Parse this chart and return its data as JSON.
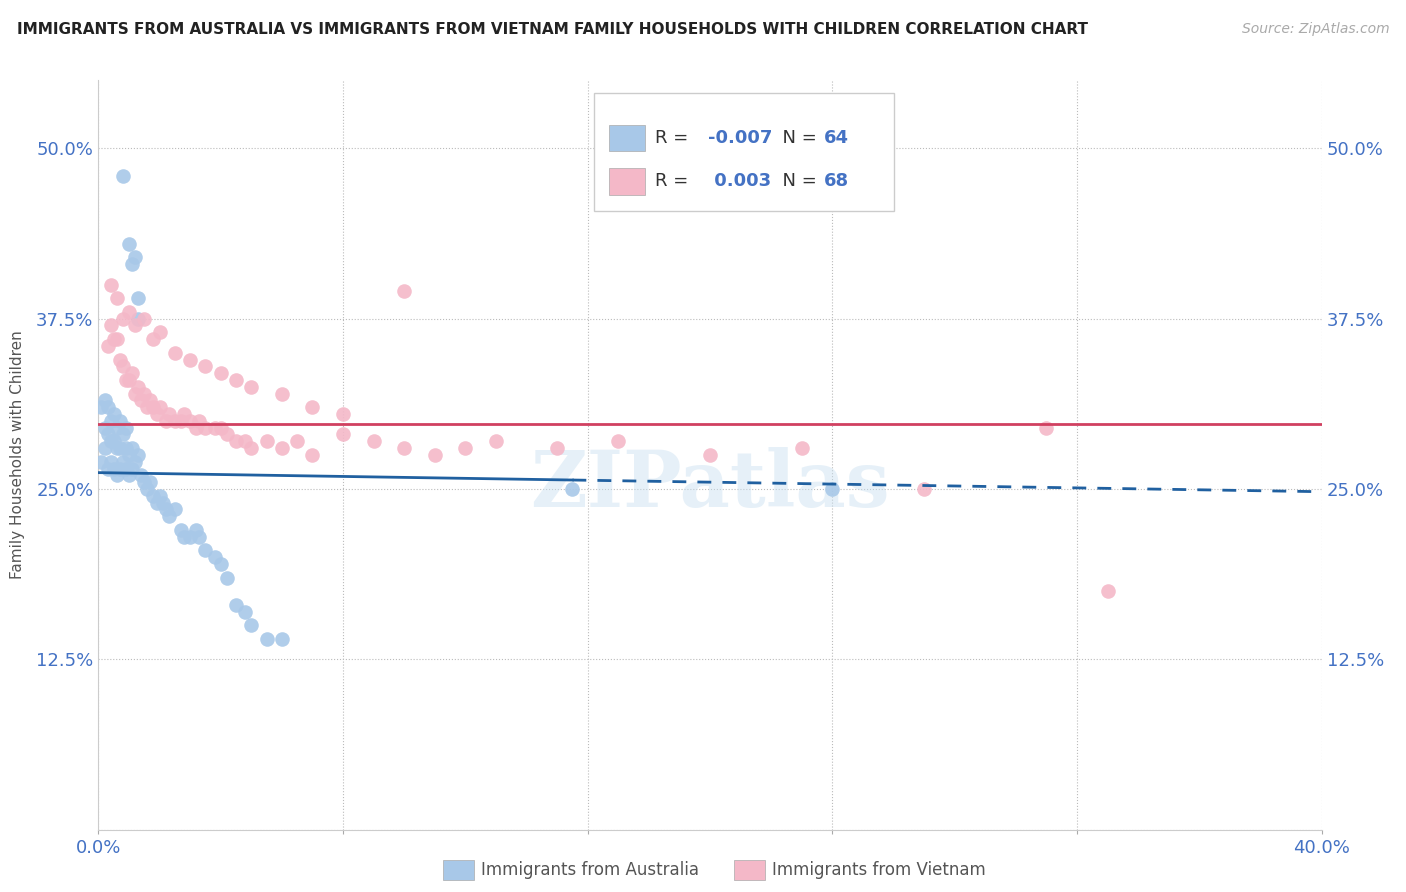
{
  "title": "IMMIGRANTS FROM AUSTRALIA VS IMMIGRANTS FROM VIETNAM FAMILY HOUSEHOLDS WITH CHILDREN CORRELATION CHART",
  "source": "Source: ZipAtlas.com",
  "ylabel": "Family Households with Children",
  "xlim": [
    0.0,
    0.4
  ],
  "ylim": [
    0.0,
    0.55
  ],
  "yticks": [
    0.0,
    0.125,
    0.25,
    0.375,
    0.5
  ],
  "ytick_labels": [
    "",
    "12.5%",
    "25.0%",
    "37.5%",
    "50.0%"
  ],
  "xticks": [
    0.0,
    0.08,
    0.16,
    0.24,
    0.32,
    0.4
  ],
  "color_australia": "#a8c8e8",
  "color_vietnam": "#f4b8c8",
  "color_australia_line": "#2060a0",
  "color_vietnam_line": "#d04060",
  "watermark": "ZIPatlas",
  "background_color": "#ffffff",
  "aus_line_solid_end": 0.155,
  "aus_line_start_y": 0.262,
  "aus_line_end_y": 0.248,
  "viet_line_y": 0.298,
  "australia_x": [
    0.008,
    0.01,
    0.011,
    0.012,
    0.013,
    0.013,
    0.001,
    0.001,
    0.002,
    0.002,
    0.002,
    0.003,
    0.003,
    0.003,
    0.004,
    0.004,
    0.004,
    0.005,
    0.005,
    0.005,
    0.006,
    0.006,
    0.006,
    0.007,
    0.007,
    0.007,
    0.008,
    0.008,
    0.009,
    0.009,
    0.009,
    0.01,
    0.01,
    0.011,
    0.011,
    0.012,
    0.013,
    0.014,
    0.015,
    0.016,
    0.017,
    0.018,
    0.019,
    0.02,
    0.021,
    0.022,
    0.023,
    0.025,
    0.027,
    0.028,
    0.03,
    0.032,
    0.033,
    0.035,
    0.038,
    0.04,
    0.042,
    0.045,
    0.048,
    0.05,
    0.055,
    0.06,
    0.155,
    0.24
  ],
  "australia_y": [
    0.48,
    0.43,
    0.415,
    0.42,
    0.39,
    0.375,
    0.27,
    0.31,
    0.28,
    0.295,
    0.315,
    0.265,
    0.29,
    0.31,
    0.27,
    0.285,
    0.3,
    0.265,
    0.285,
    0.305,
    0.26,
    0.28,
    0.295,
    0.265,
    0.28,
    0.3,
    0.27,
    0.29,
    0.265,
    0.28,
    0.295,
    0.26,
    0.275,
    0.265,
    0.28,
    0.27,
    0.275,
    0.26,
    0.255,
    0.25,
    0.255,
    0.245,
    0.24,
    0.245,
    0.24,
    0.235,
    0.23,
    0.235,
    0.22,
    0.215,
    0.215,
    0.22,
    0.215,
    0.205,
    0.2,
    0.195,
    0.185,
    0.165,
    0.16,
    0.15,
    0.14,
    0.14,
    0.25,
    0.25
  ],
  "vietnam_x": [
    0.003,
    0.004,
    0.005,
    0.006,
    0.007,
    0.008,
    0.009,
    0.01,
    0.011,
    0.012,
    0.013,
    0.014,
    0.015,
    0.016,
    0.017,
    0.018,
    0.019,
    0.02,
    0.022,
    0.023,
    0.025,
    0.027,
    0.028,
    0.03,
    0.032,
    0.033,
    0.035,
    0.038,
    0.04,
    0.042,
    0.045,
    0.048,
    0.05,
    0.055,
    0.06,
    0.065,
    0.07,
    0.08,
    0.09,
    0.1,
    0.11,
    0.12,
    0.13,
    0.15,
    0.17,
    0.2,
    0.23,
    0.27,
    0.31,
    0.004,
    0.006,
    0.008,
    0.01,
    0.012,
    0.015,
    0.018,
    0.02,
    0.025,
    0.03,
    0.035,
    0.04,
    0.045,
    0.05,
    0.06,
    0.07,
    0.08,
    0.1,
    0.33
  ],
  "vietnam_y": [
    0.355,
    0.37,
    0.36,
    0.36,
    0.345,
    0.34,
    0.33,
    0.33,
    0.335,
    0.32,
    0.325,
    0.315,
    0.32,
    0.31,
    0.315,
    0.31,
    0.305,
    0.31,
    0.3,
    0.305,
    0.3,
    0.3,
    0.305,
    0.3,
    0.295,
    0.3,
    0.295,
    0.295,
    0.295,
    0.29,
    0.285,
    0.285,
    0.28,
    0.285,
    0.28,
    0.285,
    0.275,
    0.29,
    0.285,
    0.28,
    0.275,
    0.28,
    0.285,
    0.28,
    0.285,
    0.275,
    0.28,
    0.25,
    0.295,
    0.4,
    0.39,
    0.375,
    0.38,
    0.37,
    0.375,
    0.36,
    0.365,
    0.35,
    0.345,
    0.34,
    0.335,
    0.33,
    0.325,
    0.32,
    0.31,
    0.305,
    0.395,
    0.175
  ]
}
